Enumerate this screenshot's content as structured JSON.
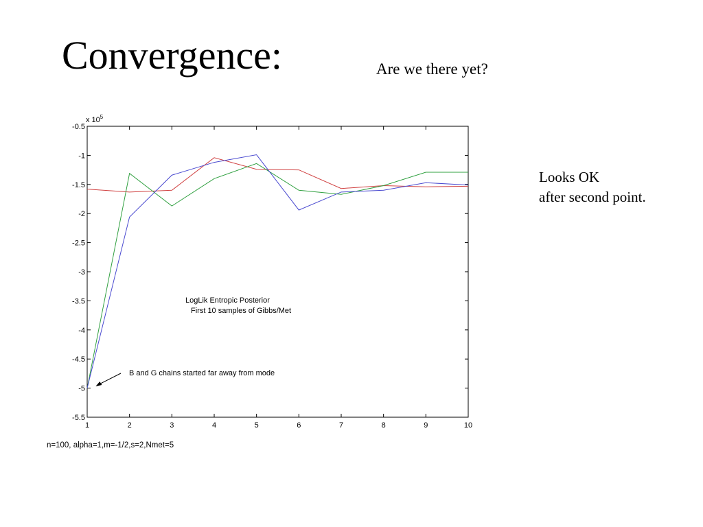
{
  "slide": {
    "title": "Convergence:",
    "subtitle": "Are we there yet?",
    "side_note": [
      "Looks OK",
      "after second point."
    ],
    "footer": "n=100, alpha=1,m=-1/2,s=2,Nmet=5"
  },
  "chart_data": {
    "type": "line",
    "title": "",
    "xlabel": "",
    "ylabel": "",
    "x": [
      1,
      2,
      3,
      4,
      5,
      6,
      7,
      8,
      9,
      10
    ],
    "xlim": [
      1,
      10
    ],
    "ylim": [
      -5.5,
      -0.5
    ],
    "y_multiplier": "x 10^5",
    "x_ticks": [
      "1",
      "2",
      "3",
      "4",
      "5",
      "6",
      "7",
      "8",
      "9",
      "10"
    ],
    "y_ticks": [
      "-0.5",
      "-1",
      "-1.5",
      "-2",
      "-2.5",
      "-3",
      "-3.5",
      "-4",
      "-4.5",
      "-5",
      "-5.5"
    ],
    "grid": false,
    "series": [
      {
        "color": "#d04040",
        "values": [
          -1.58,
          -1.63,
          -1.6,
          -1.04,
          -1.24,
          -1.25,
          -1.57,
          -1.52,
          -1.54,
          -1.53
        ]
      },
      {
        "color": "#30a040",
        "values": [
          -5.0,
          -1.31,
          -1.87,
          -1.4,
          -1.14,
          -1.6,
          -1.67,
          -1.52,
          -1.29,
          -1.29
        ]
      },
      {
        "color": "#4a4ad0",
        "values": [
          -5.0,
          -2.06,
          -1.34,
          -1.12,
          -0.99,
          -1.94,
          -1.63,
          -1.6,
          -1.47,
          -1.51
        ]
      }
    ],
    "annotations": {
      "center_text": [
        "LogLik Entropic Posterior",
        "First 10 samples of Gibbs/Met"
      ],
      "arrow_text": "B and G chains started  far away from mode",
      "arrow_target": {
        "x": 1.2,
        "y": -4.97
      }
    }
  }
}
